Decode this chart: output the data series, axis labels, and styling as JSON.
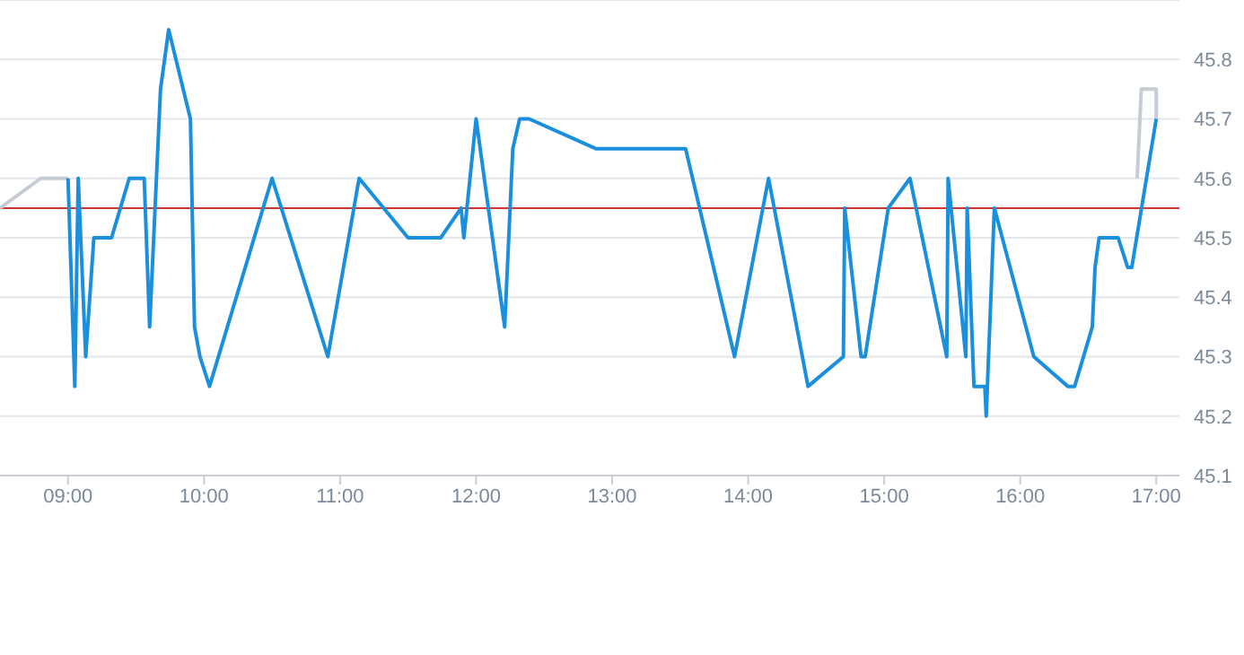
{
  "chart_data": {
    "type": "line",
    "xlim": [
      8.5,
      17.17
    ],
    "ylim": [
      45.1,
      45.9
    ],
    "xticks": [
      {
        "value": 9,
        "label": "09:00"
      },
      {
        "value": 10,
        "label": "10:00"
      },
      {
        "value": 11,
        "label": "11:00"
      },
      {
        "value": 12,
        "label": "12:00"
      },
      {
        "value": 13,
        "label": "13:00"
      },
      {
        "value": 14,
        "label": "14:00"
      },
      {
        "value": 15,
        "label": "15:00"
      },
      {
        "value": 16,
        "label": "16:00"
      },
      {
        "value": 17,
        "label": "17:00"
      }
    ],
    "yticks": [
      45.1,
      45.2,
      45.3,
      45.4,
      45.5,
      45.6,
      45.7,
      45.8
    ],
    "grid": "y",
    "marker": "none",
    "line_style": "solid",
    "ref_lines": [
      {
        "axis": "y",
        "value": 45.55,
        "color": "#d0342c"
      }
    ],
    "series": [
      {
        "color": "#c5ccd3",
        "x": [
          8.5,
          8.8,
          9.0
        ],
        "values": [
          45.55,
          45.6,
          45.6
        ]
      },
      {
        "color": "#c5ccd3",
        "x": [
          16.86,
          16.89,
          17.0,
          17.0
        ],
        "values": [
          45.6,
          45.75,
          45.75,
          45.7
        ]
      },
      {
        "color": "#1a8fdd",
        "x": [
          9.0,
          9.05,
          9.075,
          9.13,
          9.19,
          9.32,
          9.45,
          9.56,
          9.6,
          9.68,
          9.74,
          9.9,
          9.93,
          9.97,
          10.04,
          10.5,
          10.91,
          11.14,
          11.5,
          11.74,
          11.89,
          11.91,
          12.0,
          12.21,
          12.27,
          12.32,
          12.39,
          12.88,
          13.54,
          13.9,
          14.15,
          14.44,
          14.7,
          14.71,
          14.83,
          14.86,
          15.03,
          15.19,
          15.46,
          15.47,
          15.6,
          15.61,
          15.66,
          15.74,
          15.75,
          15.81,
          16.1,
          16.35,
          16.4,
          16.53,
          16.55,
          16.58,
          16.72,
          16.79,
          16.82,
          17.0
        ],
        "values": [
          45.6,
          45.25,
          45.6,
          45.3,
          45.5,
          45.5,
          45.6,
          45.6,
          45.35,
          45.75,
          45.85,
          45.7,
          45.35,
          45.3,
          45.25,
          45.6,
          45.3,
          45.6,
          45.5,
          45.5,
          45.55,
          45.5,
          45.7,
          45.35,
          45.65,
          45.7,
          45.7,
          45.65,
          45.65,
          45.3,
          45.6,
          45.25,
          45.3,
          45.55,
          45.3,
          45.3,
          45.55,
          45.6,
          45.3,
          45.6,
          45.3,
          45.55,
          45.25,
          45.25,
          45.2,
          45.55,
          45.3,
          45.25,
          45.25,
          45.35,
          45.45,
          45.5,
          45.5,
          45.45,
          45.45,
          45.7
        ]
      }
    ]
  }
}
